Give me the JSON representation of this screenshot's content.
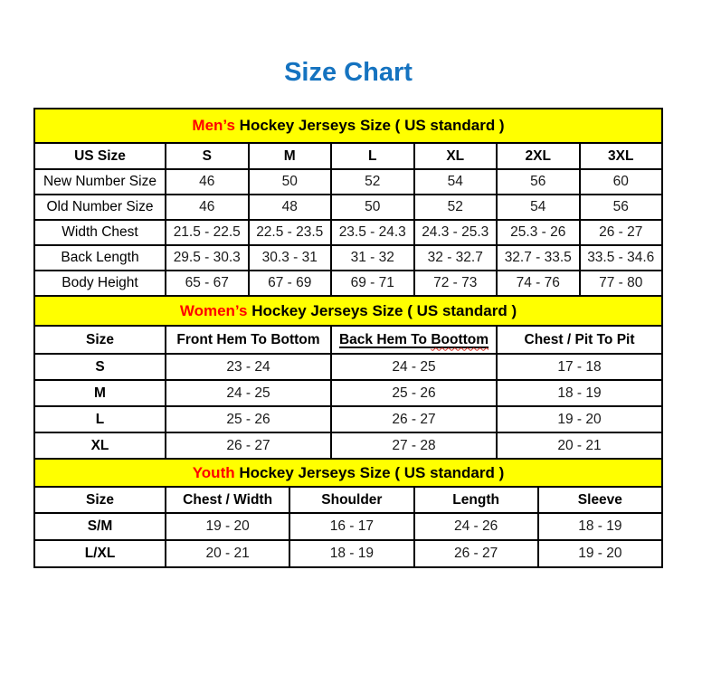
{
  "page": {
    "title": "Size Chart"
  },
  "colors": {
    "title_blue": "#1573C0",
    "band_yellow": "#FFFF00",
    "accent_red": "#FF0000",
    "grid_border": "#000000",
    "background": "#FFFFFF"
  },
  "chart_data": {
    "type": "table",
    "title": "Size Chart"
  },
  "sections": {
    "mens": {
      "band": {
        "highlight": "Men’s",
        "rest": " Hockey Jerseys Size ( US standard )"
      },
      "bold_labels": false,
      "columns": [
        "US Size",
        "S",
        "M",
        "L",
        "XL",
        "2XL",
        "3XL"
      ],
      "rows": [
        {
          "label": "New Number Size",
          "values": [
            "46",
            "50",
            "52",
            "54",
            "56",
            "60"
          ]
        },
        {
          "label": "Old Number Size",
          "values": [
            "46",
            "48",
            "50",
            "52",
            "54",
            "56"
          ]
        },
        {
          "label": "Width Chest",
          "values": [
            "21.5 - 22.5",
            "22.5 - 23.5",
            "23.5 - 24.3",
            "24.3 - 25.3",
            "25.3 - 26",
            "26 - 27"
          ]
        },
        {
          "label": "Back Length",
          "values": [
            "29.5 - 30.3",
            "30.3 - 31",
            "31 - 32",
            "32 - 32.7",
            "32.7 - 33.5",
            "33.5 - 34.6"
          ]
        },
        {
          "label": "Body Height",
          "values": [
            "65 - 67",
            "67 - 69",
            "69 - 71",
            "72 - 73",
            "74 - 76",
            "77 - 80"
          ]
        }
      ]
    },
    "womens": {
      "band": {
        "highlight": "Women’s",
        "rest": " Hockey Jerseys Size ( US standard )"
      },
      "bold_labels": true,
      "columns": [
        "Size",
        "Front Hem To Bottom",
        {
          "text": "Back Hem To Boottom",
          "pre": "Back Hem To ",
          "wavy": "Boottom"
        },
        "Chest / Pit To Pit"
      ],
      "rows": [
        {
          "label": "S",
          "values": [
            "23 - 24",
            "24 - 25",
            "17 - 18"
          ]
        },
        {
          "label": "M",
          "values": [
            "24 - 25",
            "25 - 26",
            "18 - 19"
          ]
        },
        {
          "label": "L",
          "values": [
            "25 - 26",
            "26 - 27",
            "19 - 20"
          ]
        },
        {
          "label": "XL",
          "values": [
            "26 - 27",
            "27 - 28",
            "20 - 21"
          ]
        }
      ]
    },
    "youth": {
      "band": {
        "highlight": "Youth",
        "rest": " Hockey Jerseys Size ( US standard )"
      },
      "bold_labels": true,
      "columns": [
        "Size",
        "Chest / Width",
        "Shoulder",
        "Length",
        "Sleeve"
      ],
      "rows": [
        {
          "label": "S/M",
          "values": [
            "19 - 20",
            "16 - 17",
            "24 - 26",
            "18 - 19"
          ]
        },
        {
          "label": "L/XL",
          "values": [
            "20 - 21",
            "18 - 19",
            "26 - 27",
            "19 - 20"
          ]
        }
      ]
    }
  }
}
